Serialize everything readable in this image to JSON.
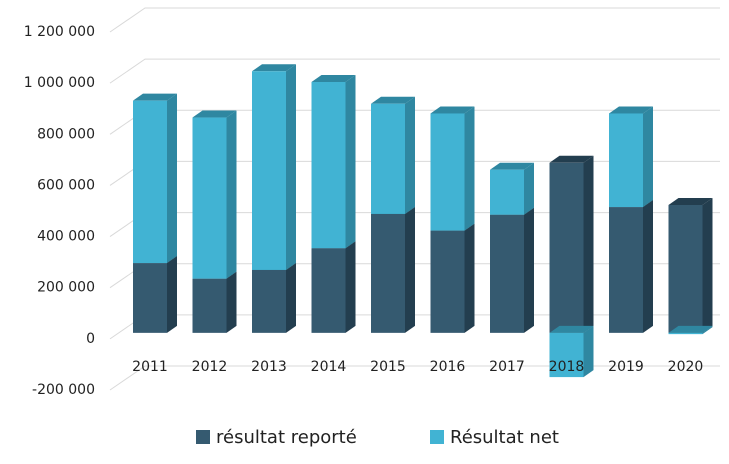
{
  "chart_data": {
    "type": "bar3d-stacked",
    "categories": [
      "2011",
      "2012",
      "2013",
      "2014",
      "2015",
      "2016",
      "2017",
      "2018",
      "2019",
      "2020"
    ],
    "series": [
      {
        "name": "résultat reporté",
        "color": "#355a70",
        "side": "#233e4f",
        "values": [
          273000,
          212000,
          246000,
          331000,
          465000,
          400000,
          462000,
          665000,
          492000,
          500000
        ]
      },
      {
        "name": "Résultat net",
        "color": "#41b3d3",
        "side": "#2f87a1",
        "values": [
          635000,
          630000,
          777000,
          650000,
          431000,
          458000,
          176000,
          -173000,
          366000,
          -5000
        ]
      }
    ],
    "ylim": [
      -200000,
      1200000
    ],
    "yticks": [
      {
        "value": -200000,
        "label": "-200 000"
      },
      {
        "value": 0,
        "label": "0"
      },
      {
        "value": 200000,
        "label": "200 000"
      },
      {
        "value": 400000,
        "label": "400 000"
      },
      {
        "value": 600000,
        "label": "600 000"
      },
      {
        "value": 800000,
        "label": "800 000"
      },
      {
        "value": 1000000,
        "label": "1 000 000"
      },
      {
        "value": 1200000,
        "label": "1 200 000"
      }
    ],
    "grid": true,
    "legend": "bottom"
  }
}
